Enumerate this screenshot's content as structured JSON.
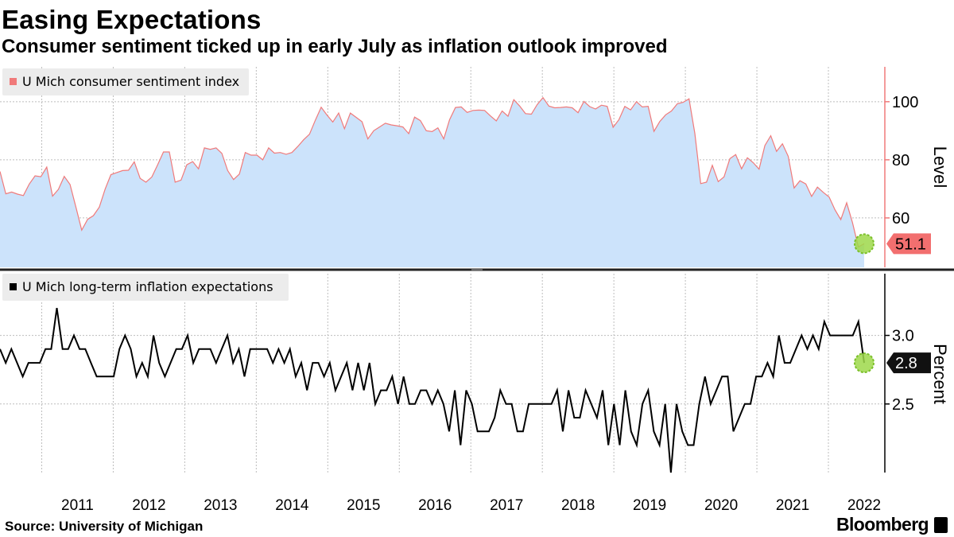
{
  "header": {
    "title": "Easing Expectations",
    "subtitle": "Consumer sentiment ticked up in early July as inflation outlook improved"
  },
  "footer": {
    "source": "Source: University of Michigan",
    "brand": "Bloomberg"
  },
  "colors": {
    "sentiment_line": "#f07a7a",
    "sentiment_fill": "#cce3fb",
    "sentiment_badge": "#f26f6f",
    "inflation_line": "#000000",
    "inflation_badge": "#111111",
    "highlight": "#9ed84a"
  },
  "chart_data": [
    {
      "type": "area",
      "legend": "U Mich consumer sentiment index",
      "ylabel": "Level",
      "ylim": [
        43,
        112
      ],
      "yticks": [
        60,
        80,
        100
      ],
      "grid": true,
      "legend_position": "top-left",
      "x_start": "2010-06",
      "x_end": "2022-07",
      "x_ticks": [
        "2011",
        "2012",
        "2013",
        "2014",
        "2015",
        "2016",
        "2017",
        "2018",
        "2019",
        "2020",
        "2021",
        "2022"
      ],
      "series": [
        {
          "name": "U Mich consumer sentiment index",
          "values": [
            76.0,
            68.3,
            68.9,
            68.2,
            67.7,
            71.6,
            74.5,
            74.2,
            77.5,
            67.5,
            69.8,
            74.3,
            71.5,
            63.7,
            55.8,
            59.5,
            60.8,
            63.7,
            69.9,
            74.9,
            75.6,
            76.3,
            76.4,
            79.3,
            73.6,
            72.3,
            74.1,
            78.3,
            82.7,
            82.7,
            72.3,
            73.0,
            78.3,
            79.4,
            76.9,
            84.1,
            83.6,
            84.1,
            82.2,
            76.3,
            73.2,
            75.1,
            82.5,
            81.6,
            81.6,
            80.0,
            84.1,
            82.3,
            82.5,
            81.9,
            82.5,
            84.6,
            86.9,
            88.8,
            93.6,
            98.1,
            95.4,
            93.0,
            96.1,
            90.7,
            96.1,
            94.6,
            93.1,
            87.2,
            90.0,
            91.3,
            92.6,
            92.0,
            91.7,
            91.3,
            89.0,
            94.7,
            93.5,
            90.0,
            89.7,
            91.0,
            87.2,
            93.8,
            98.0,
            98.2,
            96.3,
            97.0,
            97.1,
            97.0,
            95.1,
            93.4,
            96.8,
            95.0,
            100.7,
            98.5,
            95.9,
            95.7,
            99.0,
            101.4,
            98.5,
            97.9,
            98.0,
            98.2,
            97.9,
            96.2,
            100.1,
            98.3,
            97.5,
            98.8,
            98.4,
            91.2,
            93.8,
            98.4,
            97.2,
            100.0,
            98.2,
            98.4,
            89.8,
            93.2,
            95.5,
            96.8,
            99.3,
            99.8,
            101.0,
            89.1,
            71.8,
            72.3,
            78.1,
            72.5,
            74.1,
            80.4,
            81.8,
            76.9,
            80.7,
            79.0,
            76.8,
            84.9,
            88.3,
            82.9,
            85.5,
            81.2,
            70.3,
            72.8,
            71.7,
            67.4,
            70.6,
            68.8,
            67.2,
            62.8,
            59.4,
            65.2,
            58.4,
            50.0,
            51.1
          ]
        }
      ],
      "last_value_label": "51.1"
    },
    {
      "type": "line",
      "legend": "U Mich long-term inflation expectations",
      "ylabel": "Percent",
      "ylim": [
        2.0,
        3.45
      ],
      "yticks": [
        2.5,
        3.0
      ],
      "grid": true,
      "legend_position": "top-left",
      "x_start": "2010-06",
      "x_end": "2022-07",
      "x_ticks": [
        "2011",
        "2012",
        "2013",
        "2014",
        "2015",
        "2016",
        "2017",
        "2018",
        "2019",
        "2020",
        "2021",
        "2022"
      ],
      "series": [
        {
          "name": "U Mich long-term inflation expectations",
          "values": [
            2.9,
            2.8,
            2.9,
            2.8,
            2.7,
            2.8,
            2.8,
            2.8,
            2.9,
            2.9,
            3.2,
            2.9,
            2.9,
            3.0,
            2.9,
            2.9,
            2.8,
            2.7,
            2.7,
            2.7,
            2.7,
            2.9,
            3.0,
            2.9,
            2.7,
            2.8,
            2.7,
            3.0,
            2.8,
            2.7,
            2.8,
            2.9,
            2.9,
            3.0,
            2.8,
            2.9,
            2.9,
            2.9,
            2.8,
            2.9,
            3.0,
            2.8,
            2.9,
            2.7,
            2.9,
            2.9,
            2.9,
            2.9,
            2.8,
            2.9,
            2.8,
            2.9,
            2.7,
            2.8,
            2.6,
            2.8,
            2.8,
            2.7,
            2.8,
            2.6,
            2.7,
            2.8,
            2.6,
            2.8,
            2.6,
            2.8,
            2.5,
            2.6,
            2.6,
            2.7,
            2.5,
            2.7,
            2.5,
            2.5,
            2.6,
            2.6,
            2.5,
            2.6,
            2.5,
            2.3,
            2.6,
            2.2,
            2.6,
            2.5,
            2.3,
            2.3,
            2.3,
            2.4,
            2.6,
            2.5,
            2.5,
            2.3,
            2.3,
            2.5,
            2.5,
            2.5,
            2.5,
            2.5,
            2.6,
            2.3,
            2.6,
            2.4,
            2.4,
            2.6,
            2.5,
            2.4,
            2.6,
            2.2,
            2.5,
            2.2,
            2.6,
            2.3,
            2.2,
            2.5,
            2.6,
            2.3,
            2.2,
            2.5,
            2.0,
            2.5,
            2.3,
            2.2,
            2.2,
            2.5,
            2.7,
            2.5,
            2.6,
            2.7,
            2.7,
            2.3,
            2.4,
            2.5,
            2.5,
            2.7,
            2.7,
            2.8,
            2.7,
            3.0,
            2.8,
            2.8,
            2.9,
            3.0,
            2.9,
            3.0,
            2.9,
            3.1,
            3.0,
            3.0,
            3.0,
            3.0,
            3.0,
            3.1,
            2.8
          ]
        }
      ],
      "last_value_label": "2.8"
    }
  ]
}
